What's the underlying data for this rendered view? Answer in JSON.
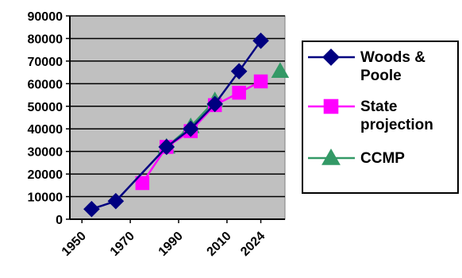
{
  "chart_data": {
    "type": "line",
    "title": "",
    "xlabel": "",
    "ylabel": "",
    "ylim": [
      0,
      90000
    ],
    "yticks": [
      "0",
      "10000",
      "20000",
      "30000",
      "40000",
      "50000",
      "60000",
      "70000",
      "80000",
      "90000"
    ],
    "xlim": [
      1945,
      2034
    ],
    "xticks": [
      1950,
      1970,
      1990,
      2010,
      2024
    ],
    "grid": "horizontal",
    "legend_position": "right",
    "plot_background": "#c0c0c0",
    "series": [
      {
        "name": "Woods & Poole",
        "legend_lines": [
          "Woods &",
          "Poole"
        ],
        "color": "#000080",
        "marker": "diamond",
        "points": [
          {
            "x": 1954,
            "y": 4500
          },
          {
            "x": 1964,
            "y": 8000
          },
          {
            "x": 1985,
            "y": 32000
          },
          {
            "x": 1995,
            "y": 40000
          },
          {
            "x": 2005,
            "y": 51000
          },
          {
            "x": 2015,
            "y": 65500
          },
          {
            "x": 2024,
            "y": 79000
          }
        ]
      },
      {
        "name": "State projection",
        "legend_lines": [
          "State",
          "projection"
        ],
        "color": "#ff00ff",
        "marker": "square",
        "points": [
          {
            "x": 1975,
            "y": 16000
          },
          {
            "x": 1985,
            "y": 32000
          },
          {
            "x": 1995,
            "y": 39000
          },
          {
            "x": 2005,
            "y": 50500
          },
          {
            "x": 2015,
            "y": 56000
          },
          {
            "x": 2024,
            "y": 61000
          }
        ]
      },
      {
        "name": "CCMP",
        "legend_lines": [
          "CCMP"
        ],
        "color": "#339966",
        "marker": "triangle",
        "points": [
          {
            "x": 1985,
            "y": 32000
          },
          {
            "x": 1995,
            "y": 41000
          },
          {
            "x": 2005,
            "y": 52500
          },
          {
            "x": 2032,
            "y": 65500
          }
        ]
      }
    ]
  }
}
